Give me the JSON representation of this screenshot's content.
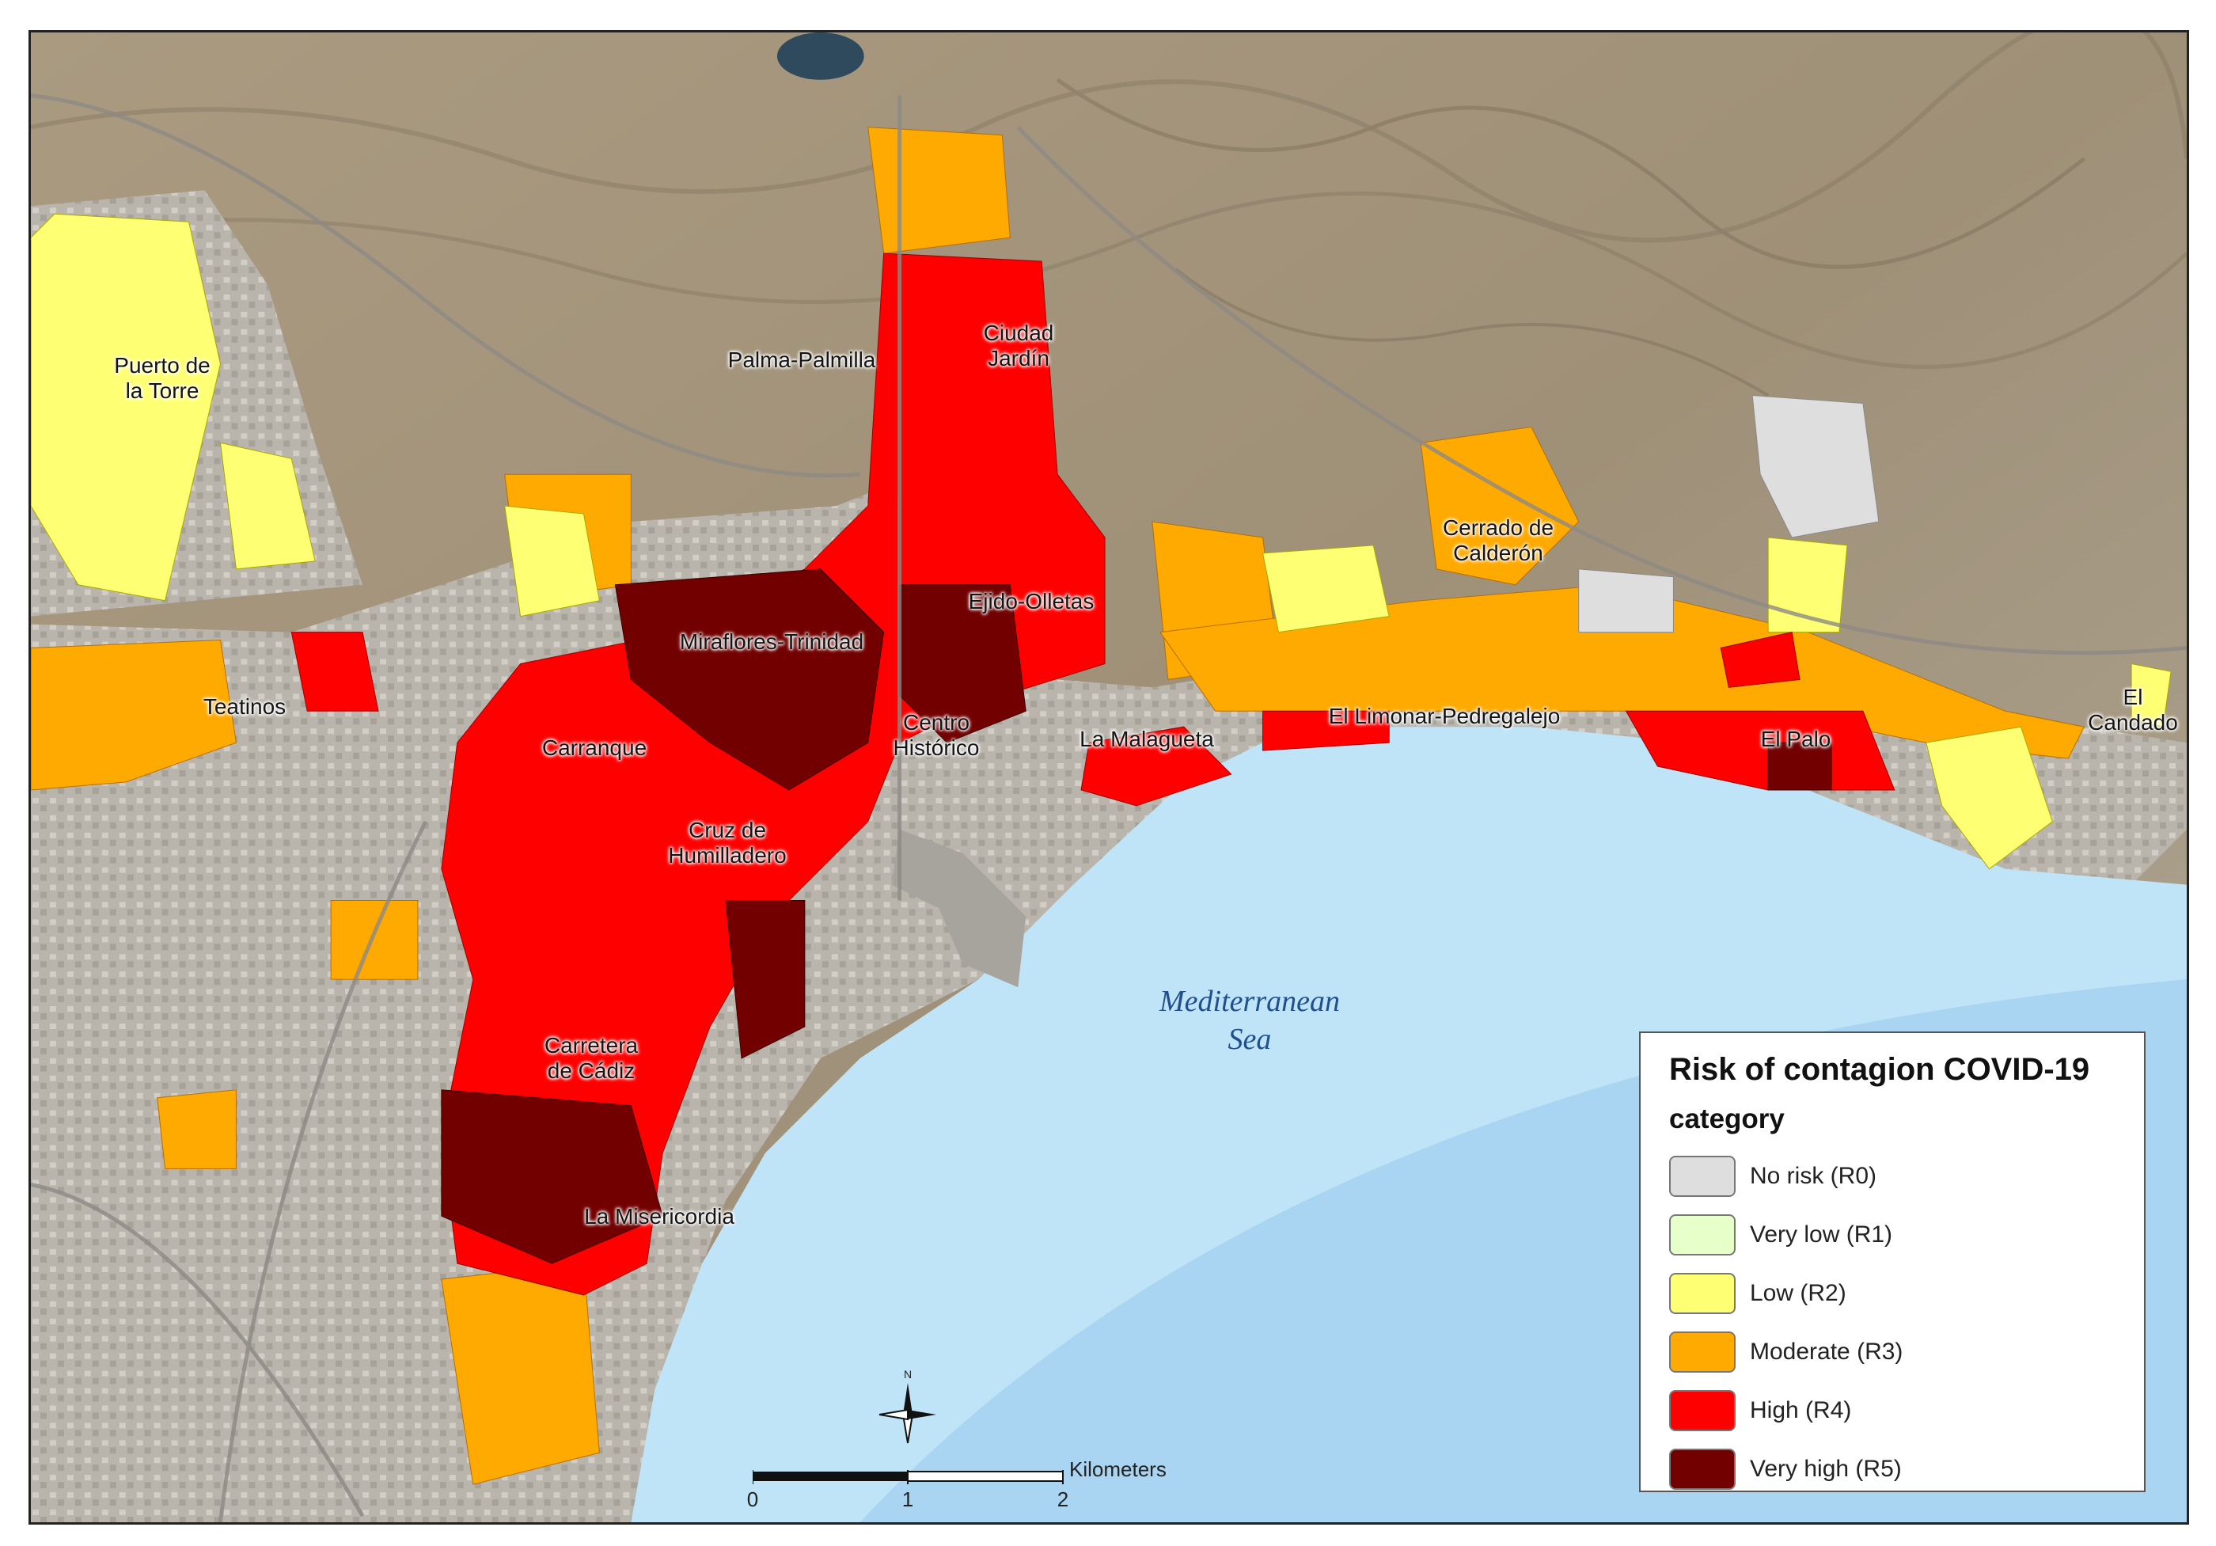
{
  "place_labels": [
    {
      "name": "Puerto de\nla Torre"
    },
    {
      "name": "Palma-Palmilla"
    },
    {
      "name": "Ciudad\nJardín"
    },
    {
      "name": "Teatinos"
    },
    {
      "name": "Miraflores-Trinidad"
    },
    {
      "name": "Ejido-Olletas"
    },
    {
      "name": "Carranque"
    },
    {
      "name": "Centro\nHistórico"
    },
    {
      "name": "La Malagueta"
    },
    {
      "name": "Cruz de\nHumilladero"
    },
    {
      "name": "Carretera\nde Cádiz"
    },
    {
      "name": "La Misericordia"
    },
    {
      "name": "Cerrado de\nCalderón"
    },
    {
      "name": "El Limonar-Pedregalejo"
    },
    {
      "name": "El Palo"
    },
    {
      "name": "El\nCandado"
    }
  ],
  "sea_label": "Mediterranean\nSea",
  "legend": {
    "title": "Risk of contagion COVID-19",
    "subtitle": "category",
    "items": [
      {
        "label": "No risk (R0)",
        "color": "#dedede"
      },
      {
        "label": "Very low (R1)",
        "color": "#e7ffc8"
      },
      {
        "label": "Low (R2)",
        "color": "#ffff73"
      },
      {
        "label": "Moderate (R3)",
        "color": "#ffaa00"
      },
      {
        "label": "High (R4)",
        "color": "#ff0000"
      },
      {
        "label": "Very high (R5)",
        "color": "#730000"
      }
    ]
  },
  "scale_bar": {
    "ticks": [
      "0",
      "1",
      "2"
    ],
    "unit": "Kilometers"
  },
  "north_arrow_label": "N",
  "colors": {
    "sea": "#bfe3f7",
    "sea_deep": "#a9d4f2",
    "land": "#a79a83",
    "urban": "#b7b2a8"
  }
}
